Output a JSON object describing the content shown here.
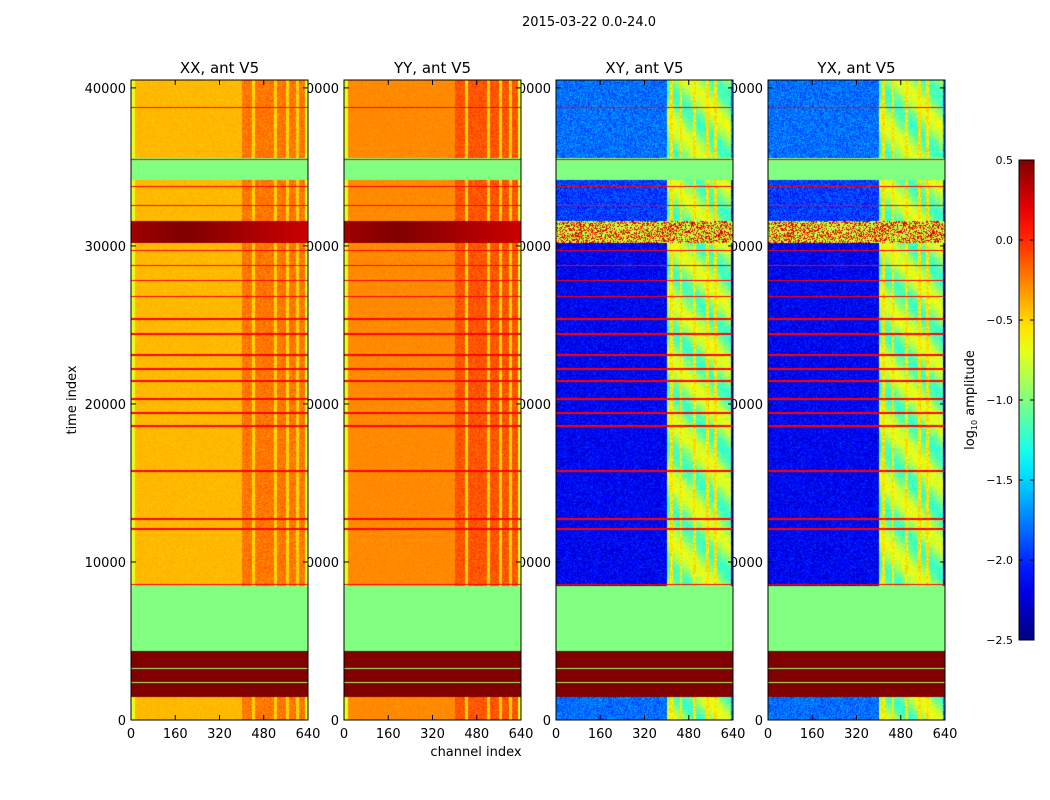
{
  "figure_title": "2015-03-22 0.0-24.0",
  "chart_data": {
    "type": "heatmap",
    "xlabel": "channel index",
    "ylabel": "time index",
    "xlim": [
      0,
      640
    ],
    "ylim": [
      0,
      40500
    ],
    "xticks": [
      "0",
      "160",
      "320",
      "480",
      "640"
    ],
    "xtick_values": [
      0,
      160,
      320,
      480,
      640
    ],
    "yticks": [
      "0",
      "10000",
      "20000",
      "30000",
      "40000"
    ],
    "ytick_values": [
      0,
      10000,
      20000,
      30000,
      40000
    ],
    "colormap": "jet",
    "colorbar": {
      "label_main": "log",
      "label_sub": "10",
      "label_rest": " amplitude",
      "range": [
        -2.5,
        0.5
      ],
      "ticks": [
        "0.5",
        "0.0",
        "−0.5",
        "−1.0",
        "−1.5",
        "−2.0",
        "−2.5"
      ],
      "tick_values": [
        0.5,
        0.0,
        -0.5,
        -1.0,
        -1.5,
        -2.0,
        -2.5
      ]
    },
    "panels": [
      {
        "title": "XX, ant V5",
        "base": -0.42,
        "band_base": -0.22,
        "cross": false
      },
      {
        "title": "YY, ant V5",
        "base": -0.28,
        "band_base": -0.12,
        "cross": false
      },
      {
        "title": "XY, ant V5",
        "base": -2.15,
        "band_base": -0.95,
        "cross": true
      },
      {
        "title": "YX, ant V5",
        "base": -2.15,
        "band_base": -0.95,
        "cross": true
      }
    ],
    "time_segments": [
      {
        "from": 0,
        "to": 1500,
        "kind": "data"
      },
      {
        "from": 1500,
        "to": 4400,
        "kind": "saturated",
        "value": 0.5
      },
      {
        "from": 4400,
        "to": 8500,
        "kind": "flagged",
        "value": -1.0
      },
      {
        "from": 8500,
        "to": 30200,
        "kind": "data"
      },
      {
        "from": 30200,
        "to": 31600,
        "kind": "rfi_burst"
      },
      {
        "from": 31600,
        "to": 34200,
        "kind": "data"
      },
      {
        "from": 34200,
        "to": 35600,
        "kind": "flagged",
        "value": -1.0
      },
      {
        "from": 35600,
        "to": 40500,
        "kind": "data"
      }
    ],
    "rfi_lines_time": [
      8620,
      12108,
      12742,
      15784,
      18637,
      19462,
      20349,
      21490,
      22250,
      23138,
      24469,
      25420,
      26814,
      27828,
      28780,
      29730,
      32583,
      33787,
      35500,
      38800
    ],
    "colors": {
      "flagged": "#7fff7f",
      "saturated": "#7f0000"
    }
  }
}
